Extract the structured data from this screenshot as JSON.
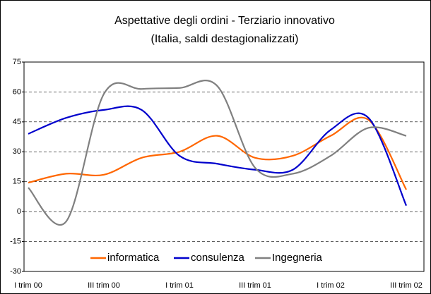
{
  "chart_data": {
    "type": "line",
    "title": "Aspettative degli ordini - Terziario innovativo",
    "subtitle": "(Italia, saldi destagionalizzati)",
    "categories": [
      "I trim 00",
      null,
      "III trim 00",
      null,
      "I trim 01",
      null,
      "III trim 01",
      null,
      "I trim 02",
      null,
      "III trim 02"
    ],
    "series": [
      {
        "name": "informatica",
        "color": "#ff6600",
        "values": [
          14.5,
          19,
          18.5,
          27,
          30,
          38,
          27,
          28,
          38,
          46,
          11
        ]
      },
      {
        "name": "consulenza",
        "color": "#0000cc",
        "values": [
          39,
          47,
          51,
          51,
          28,
          24,
          21,
          21,
          41,
          47,
          3
        ]
      },
      {
        "name": "Ingegneria",
        "color": "#808080",
        "values": [
          12,
          -5,
          59,
          61.5,
          62,
          63,
          22,
          19,
          28,
          42,
          38
        ]
      }
    ],
    "ylim": [
      -30,
      75
    ],
    "yticks": [
      -30,
      -15,
      0,
      15,
      30,
      45,
      60,
      75
    ],
    "grid": true,
    "legend": "bottom"
  }
}
